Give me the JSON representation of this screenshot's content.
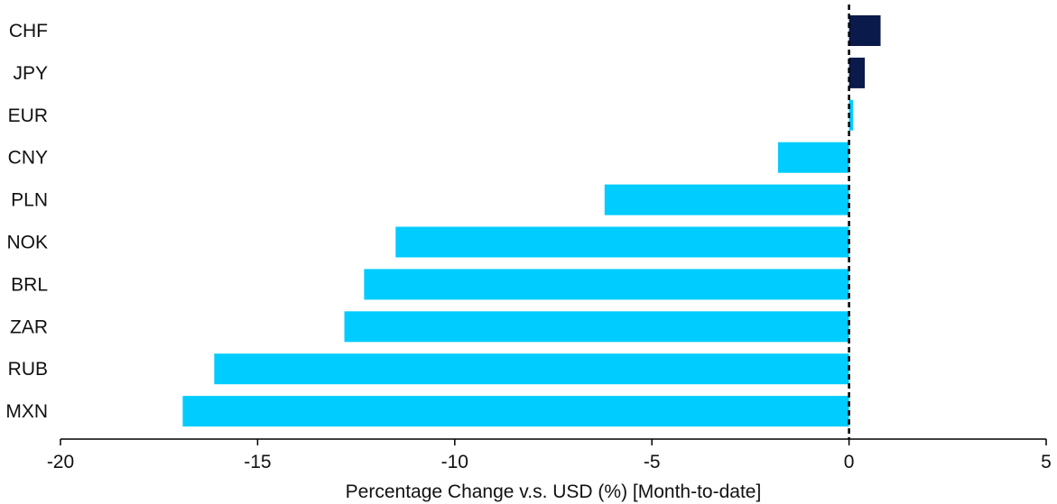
{
  "chart_data": {
    "type": "bar",
    "orientation": "horizontal",
    "categories": [
      "CHF",
      "JPY",
      "EUR",
      "CNY",
      "PLN",
      "NOK",
      "BRL",
      "ZAR",
      "RUB",
      "MXN"
    ],
    "values": [
      0.8,
      0.4,
      0.1,
      -1.8,
      -6.2,
      -11.5,
      -12.3,
      -12.8,
      -16.1,
      -16.9
    ],
    "xlabel": "Percentage Change v.s. USD (%) [Month-to-date]",
    "ylabel": "",
    "xlim": [
      -20,
      5
    ],
    "xticks": [
      -20,
      -15,
      -10,
      -5,
      0,
      5
    ],
    "grid": false,
    "zero_line": "dashed",
    "colors": {
      "positive_strong": "#0a1a4a",
      "light": "#00ccff",
      "axis": "#000000"
    },
    "bar_colors": [
      "#0a1a4a",
      "#0a1a4a",
      "#00ccff",
      "#00ccff",
      "#00ccff",
      "#00ccff",
      "#00ccff",
      "#00ccff",
      "#00ccff",
      "#00ccff"
    ]
  }
}
